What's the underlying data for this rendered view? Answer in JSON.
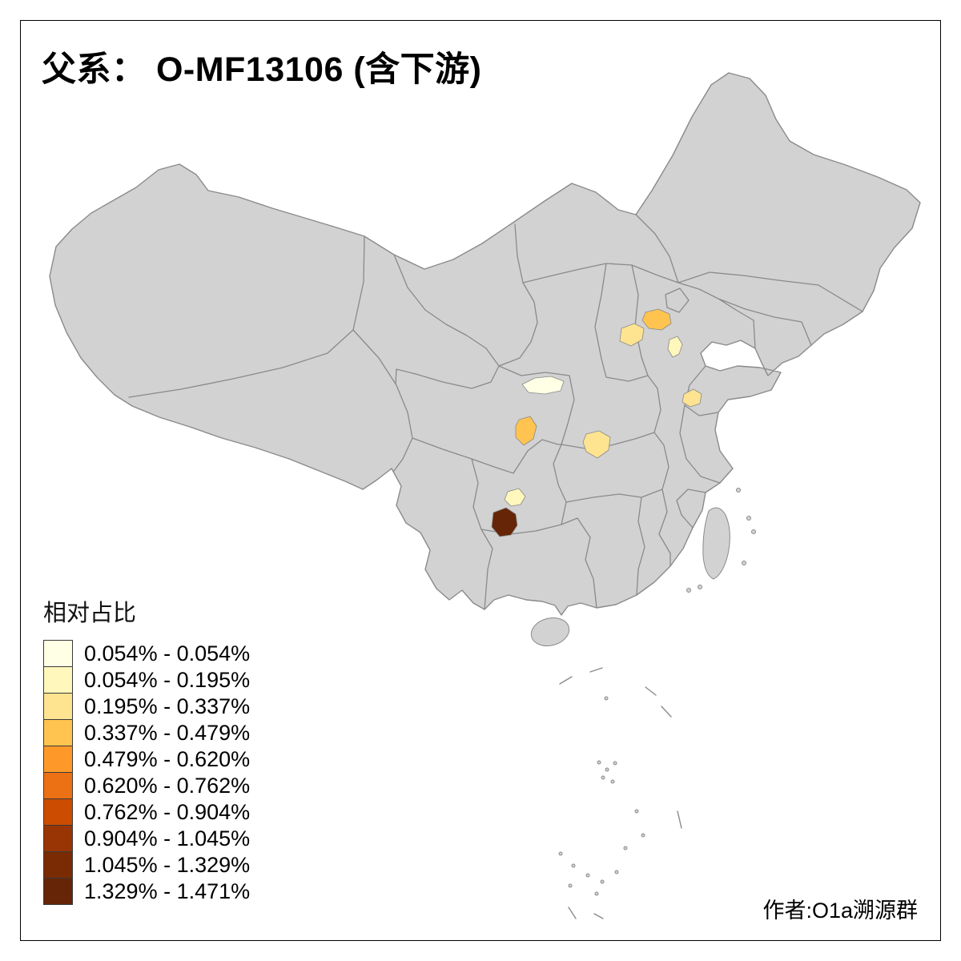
{
  "title": "父系： O-MF13106 (含下游)",
  "credit": "作者:O1a溯源群",
  "legend": {
    "title": "相对占比",
    "classes": [
      {
        "label": "0.054% - 0.054%",
        "color": "#FFFFE5"
      },
      {
        "label": "0.054% - 0.195%",
        "color": "#FFF7BC"
      },
      {
        "label": "0.195% - 0.337%",
        "color": "#FEE391"
      },
      {
        "label": "0.337% - 0.479%",
        "color": "#FEC44F"
      },
      {
        "label": "0.479% - 0.620%",
        "color": "#FE9929"
      },
      {
        "label": "0.620% - 0.762%",
        "color": "#EC7014"
      },
      {
        "label": "0.762% - 0.904%",
        "color": "#CC4C02"
      },
      {
        "label": "0.904% - 1.045%",
        "color": "#993404"
      },
      {
        "label": "1.045% - 1.329%",
        "color": "#7A2B04"
      },
      {
        "label": "1.329% - 1.471%",
        "color": "#662506"
      }
    ]
  },
  "map": {
    "land_fill": "#D2D2D2",
    "border_color": "#8A8A8A",
    "frame_color": "#000000",
    "background": "#FFFFFF",
    "regions": [
      {
        "id": "region-1",
        "class_index": 3
      },
      {
        "id": "region-2",
        "class_index": 2
      },
      {
        "id": "region-3",
        "class_index": 1
      },
      {
        "id": "region-4",
        "class_index": 0
      },
      {
        "id": "region-5",
        "class_index": 2
      },
      {
        "id": "region-6",
        "class_index": 3
      },
      {
        "id": "region-7",
        "class_index": 2
      },
      {
        "id": "region-8",
        "class_index": 1
      },
      {
        "id": "region-9",
        "class_index": 9
      }
    ]
  }
}
